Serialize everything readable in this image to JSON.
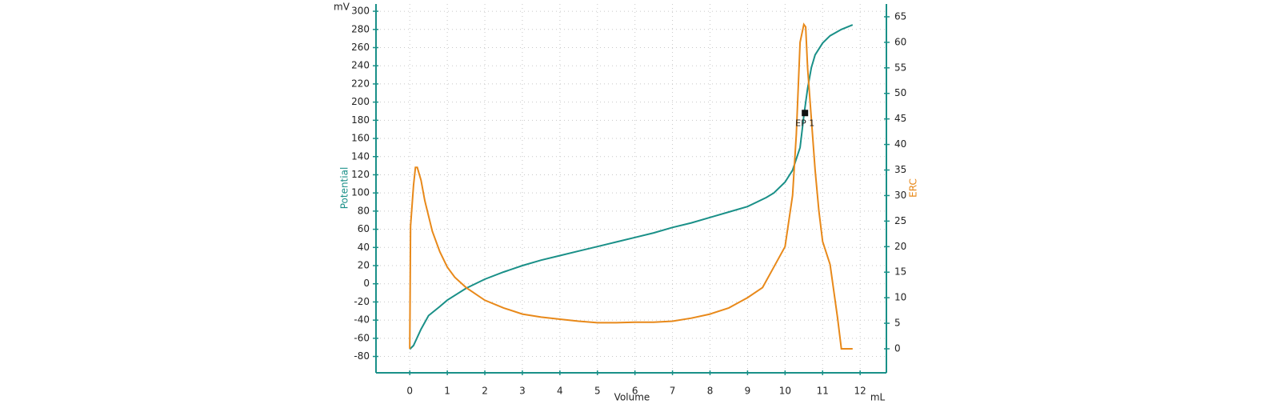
{
  "chart_data": {
    "type": "line",
    "y_unit": "mV",
    "y_label": "Potential",
    "y2_label": "ERC",
    "x_label": "Volume",
    "x_unit": "mL",
    "xlim": [
      -0.9,
      12.7
    ],
    "xticks": [
      0,
      1,
      2,
      3,
      4,
      5,
      6,
      7,
      8,
      9,
      10,
      11,
      12
    ],
    "ylim": [
      -98,
      308
    ],
    "yticks": [
      -80,
      -60,
      -40,
      -20,
      0,
      20,
      40,
      60,
      80,
      100,
      120,
      140,
      160,
      180,
      200,
      220,
      240,
      260,
      280,
      300
    ],
    "y2lim": [
      -4.7,
      67.5
    ],
    "y2ticks": [
      0,
      5,
      10,
      15,
      20,
      25,
      30,
      35,
      40,
      45,
      50,
      55,
      60,
      65
    ],
    "grid": true,
    "series": [
      {
        "name": "Potential",
        "color": "#1a9088",
        "x": [
          0,
          0.1,
          0.3,
          0.5,
          0.8,
          1.0,
          1.5,
          2,
          2.5,
          3,
          3.5,
          4,
          4.5,
          5,
          5.5,
          6,
          6.5,
          7,
          7.5,
          8,
          8.5,
          9,
          9.5,
          9.7,
          10,
          10.2,
          10.4,
          10.5,
          10.6,
          10.7,
          10.8,
          11,
          11.2,
          11.5,
          11.8
        ],
        "values": [
          -72,
          -68,
          -50,
          -35,
          -25,
          -18,
          -5,
          5,
          13,
          20,
          26,
          31,
          36,
          41,
          46,
          51,
          56,
          62,
          67,
          73,
          79,
          85,
          95,
          100,
          112,
          125,
          150,
          185,
          215,
          238,
          252,
          265,
          273,
          280,
          285
        ]
      },
      {
        "name": "ERC",
        "color": "#e8891a",
        "axis": "y2",
        "x": [
          0,
          0.02,
          0.1,
          0.15,
          0.2,
          0.3,
          0.4,
          0.6,
          0.8,
          1.0,
          1.2,
          1.5,
          2,
          2.5,
          3,
          3.5,
          4,
          4.5,
          5,
          5.5,
          6,
          6.5,
          7,
          7.5,
          8,
          8.5,
          9,
          9.4,
          9.7,
          10,
          10.2,
          10.3,
          10.4,
          10.5,
          10.55,
          10.6,
          10.7,
          10.8,
          10.9,
          11,
          11.2,
          11.4,
          11.5,
          11.8
        ],
        "values": [
          0,
          24,
          32,
          35.5,
          35.5,
          33,
          29,
          23,
          19,
          16,
          14,
          12,
          9.5,
          8,
          6.8,
          6.2,
          5.8,
          5.4,
          5.1,
          5.1,
          5.2,
          5.2,
          5.4,
          6,
          6.8,
          8,
          10,
          12,
          16,
          20,
          30,
          42,
          60,
          63.5,
          63,
          55,
          45,
          35,
          27,
          21,
          16.5,
          6,
          0,
          0
        ]
      }
    ],
    "annotations": [
      {
        "x": 10.53,
        "y": 188,
        "label": "EP 1"
      }
    ]
  }
}
